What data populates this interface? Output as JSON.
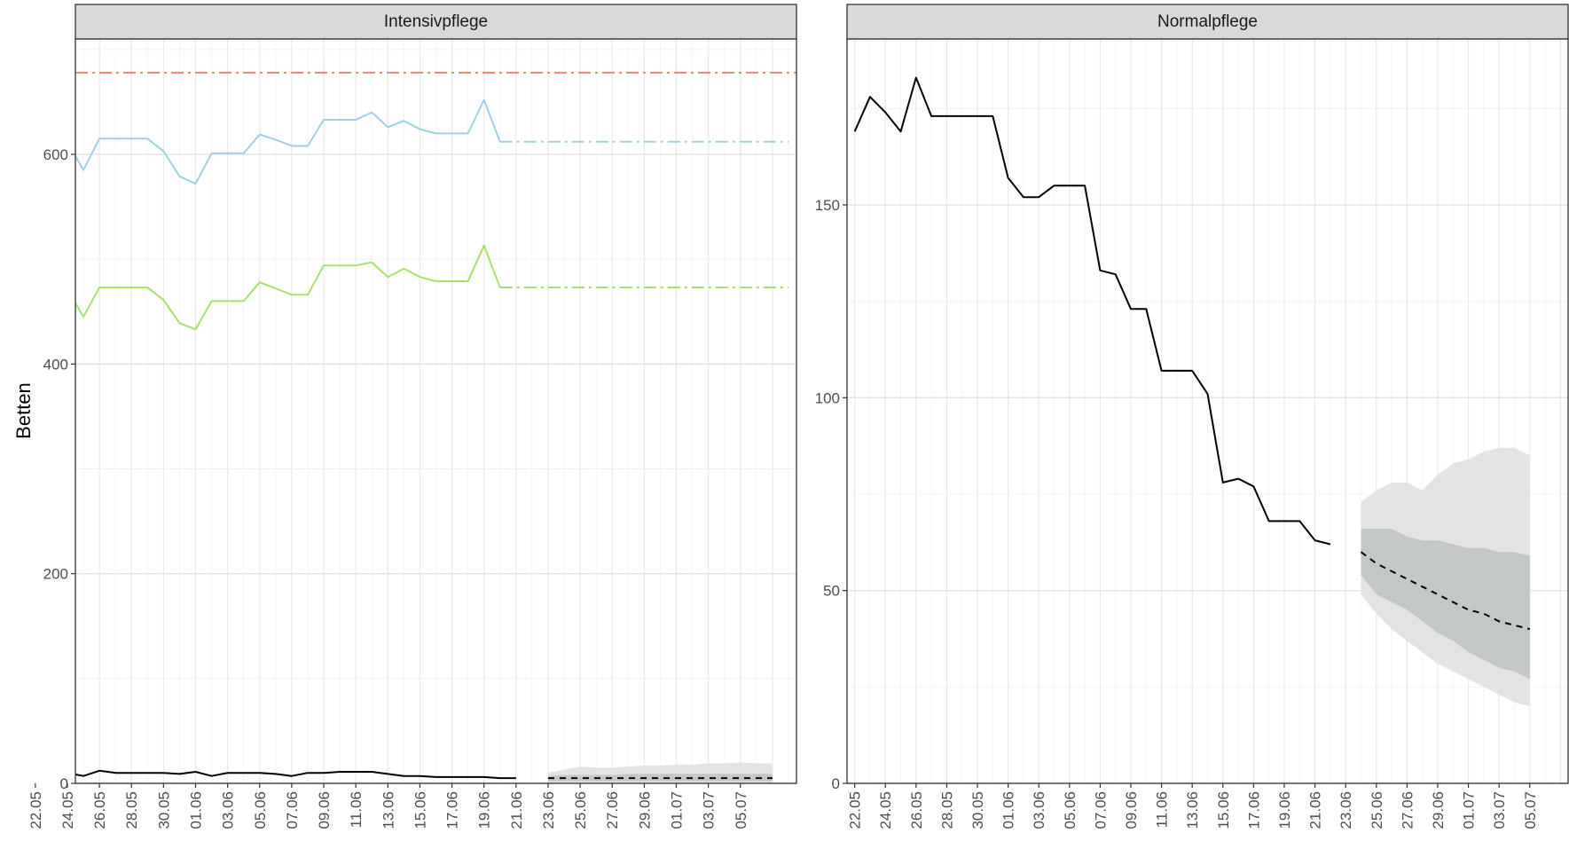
{
  "chart_data": {
    "type": "line",
    "ylabel": "Betten",
    "x_ticks": [
      "22.05",
      "24.05",
      "26.05",
      "28.05",
      "30.05",
      "01.06",
      "03.06",
      "05.06",
      "07.06",
      "09.06",
      "11.06",
      "13.06",
      "15.06",
      "17.06",
      "19.06",
      "21.06",
      "23.06",
      "25.06",
      "27.06",
      "29.06",
      "01.07",
      "03.07",
      "05.07"
    ],
    "panels": [
      {
        "title": "Intensivpflege",
        "ylim": [
          0,
          710
        ],
        "y_ticks": [
          0,
          200,
          400,
          600
        ],
        "grid": true,
        "reference_line": {
          "value": 678,
          "color": "#f4846e"
        },
        "series": [
          {
            "color": "#9fd0e3",
            "observed": [
              640,
              613,
              612,
              585,
              615,
              615,
              615,
              615,
              603,
              579,
              572,
              601,
              601,
              601,
              619,
              614,
              608,
              608,
              633,
              633,
              633,
              640,
              626,
              632,
              624,
              620,
              620,
              620,
              652,
              612
            ],
            "projection": 612
          },
          {
            "color": "#a6e26a",
            "observed": [
              498,
              472,
              471,
              445,
              473,
              473,
              473,
              473,
              461,
              439,
              433,
              460,
              460,
              460,
              478,
              472,
              466,
              466,
              494,
              494,
              494,
              497,
              483,
              491,
              483,
              479,
              479,
              479,
              513,
              473
            ],
            "projection": 473
          },
          {
            "color": "#000000",
            "observed": [
              12,
              11,
              10,
              7,
              12,
              10,
              10,
              10,
              10,
              9,
              11,
              7,
              10,
              10,
              10,
              9,
              7,
              10,
              10,
              11,
              11,
              11,
              9,
              7,
              7,
              6,
              6,
              6,
              6,
              5,
              5
            ],
            "forecast": [
              5,
              5,
              5,
              5,
              5,
              5,
              5,
              5,
              5,
              5,
              5,
              5,
              5,
              5,
              5
            ],
            "band_outer_low": [
              0,
              0,
              0,
              0,
              0,
              0,
              0,
              0,
              0,
              0,
              0,
              0,
              0,
              0,
              0
            ],
            "band_outer_high": [
              10,
              13,
              16,
              15,
              15,
              16,
              17,
              17,
              18,
              18,
              19,
              19,
              20,
              19,
              19
            ],
            "band_inner_low": [
              2,
              2,
              2,
              2,
              2,
              2,
              2,
              2,
              2,
              2,
              2,
              2,
              2,
              2,
              2
            ],
            "band_inner_high": [
              7,
              8,
              8,
              8,
              8,
              9,
              9,
              9,
              9,
              9,
              9,
              9,
              9,
              9,
              9
            ]
          }
        ]
      },
      {
        "title": "Normalpflege",
        "ylim": [
          0,
          193
        ],
        "y_ticks": [
          0,
          50,
          100,
          150
        ],
        "grid": true,
        "series": [
          {
            "color": "#000000",
            "observed": [
              169,
              178,
              174,
              169,
              183,
              173,
              173,
              173,
              173,
              173,
              157,
              152,
              152,
              155,
              155,
              155,
              133,
              132,
              123,
              123,
              107,
              107,
              107,
              101,
              78,
              79,
              77,
              68,
              68,
              68,
              63,
              62
            ],
            "forecast": [
              60,
              57,
              55,
              53,
              51,
              49,
              47,
              45,
              44,
              42,
              41,
              40
            ],
            "band_outer_low": [
              49,
              44,
              40,
              37,
              34,
              31,
              29,
              27,
              25,
              23,
              21,
              20
            ],
            "band_outer_high": [
              73,
              76,
              78,
              78,
              76,
              80,
              83,
              84,
              86,
              87,
              87,
              85
            ],
            "band_inner_low": [
              54,
              49,
              47,
              45,
              42,
              39,
              37,
              34,
              32,
              30,
              29,
              27
            ],
            "band_inner_high": [
              66,
              66,
              66,
              64,
              63,
              63,
              62,
              61,
              61,
              60,
              60,
              59
            ]
          }
        ]
      }
    ]
  }
}
